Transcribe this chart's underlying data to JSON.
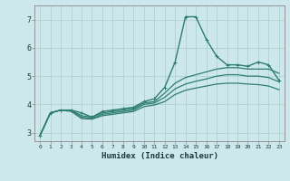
{
  "xlabel": "Humidex (Indice chaleur)",
  "ylabel": "",
  "bg_color": "#cce8ec",
  "grid_color": "#aacccc",
  "line_color": "#2e7d72",
  "xlim": [
    -0.5,
    23.5
  ],
  "ylim": [
    2.7,
    7.5
  ],
  "xticks": [
    0,
    1,
    2,
    3,
    4,
    5,
    6,
    7,
    8,
    9,
    10,
    11,
    12,
    13,
    14,
    15,
    16,
    17,
    18,
    19,
    20,
    21,
    22,
    23
  ],
  "yticks": [
    3,
    4,
    5,
    6,
    7
  ],
  "lines": [
    {
      "x": [
        0,
        1,
        2,
        3,
        4,
        5,
        6,
        7,
        8,
        9,
        10,
        11,
        12,
        13,
        14,
        15,
        16,
        17,
        18,
        19,
        20,
        21,
        22,
        23
      ],
      "y": [
        2.9,
        3.7,
        3.8,
        3.8,
        3.7,
        3.55,
        3.75,
        3.8,
        3.85,
        3.9,
        4.1,
        4.2,
        4.6,
        5.5,
        7.1,
        7.1,
        6.3,
        5.7,
        5.4,
        5.4,
        5.35,
        5.5,
        5.4,
        4.85
      ],
      "marker": true,
      "linewidth": 1.0
    },
    {
      "x": [
        0,
        1,
        2,
        3,
        4,
        5,
        6,
        7,
        8,
        9,
        10,
        11,
        12,
        13,
        14,
        15,
        16,
        17,
        18,
        19,
        20,
        21,
        22,
        23
      ],
      "y": [
        2.9,
        3.7,
        3.8,
        3.8,
        3.6,
        3.55,
        3.7,
        3.75,
        3.8,
        3.85,
        4.05,
        4.1,
        4.4,
        4.75,
        4.95,
        5.05,
        5.15,
        5.25,
        5.3,
        5.3,
        5.25,
        5.25,
        5.25,
        5.1
      ],
      "marker": false,
      "linewidth": 0.9
    },
    {
      "x": [
        0,
        1,
        2,
        3,
        4,
        5,
        6,
        7,
        8,
        9,
        10,
        11,
        12,
        13,
        14,
        15,
        16,
        17,
        18,
        19,
        20,
        21,
        22,
        23
      ],
      "y": [
        2.9,
        3.7,
        3.8,
        3.8,
        3.55,
        3.5,
        3.65,
        3.7,
        3.75,
        3.8,
        4.0,
        4.05,
        4.25,
        4.55,
        4.72,
        4.82,
        4.9,
        5.0,
        5.05,
        5.05,
        5.0,
        5.0,
        4.95,
        4.8
      ],
      "marker": false,
      "linewidth": 0.9
    },
    {
      "x": [
        0,
        1,
        2,
        3,
        4,
        5,
        6,
        7,
        8,
        9,
        10,
        11,
        12,
        13,
        14,
        15,
        16,
        17,
        18,
        19,
        20,
        21,
        22,
        23
      ],
      "y": [
        2.9,
        3.7,
        3.8,
        3.75,
        3.5,
        3.48,
        3.6,
        3.65,
        3.7,
        3.75,
        3.92,
        3.98,
        4.1,
        4.35,
        4.5,
        4.58,
        4.65,
        4.72,
        4.75,
        4.75,
        4.72,
        4.7,
        4.65,
        4.52
      ],
      "marker": false,
      "linewidth": 0.9
    }
  ]
}
